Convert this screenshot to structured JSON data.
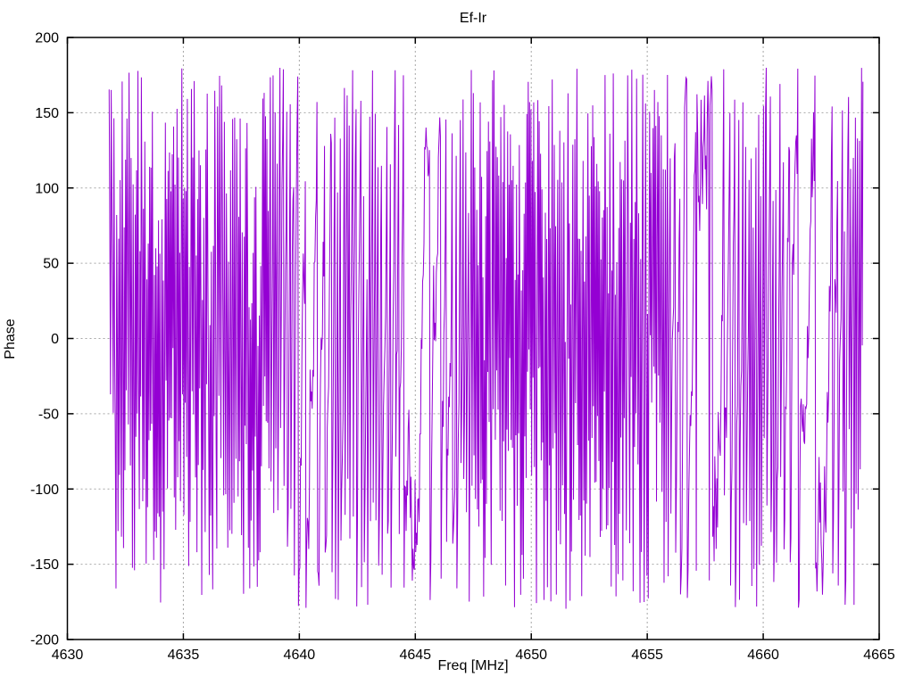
{
  "chart_data": {
    "type": "line",
    "title": "Ef-Ir",
    "xlabel": "Freq [MHz]",
    "ylabel": "Phase",
    "xlim": [
      4630,
      4665
    ],
    "ylim": [
      -200,
      200
    ],
    "x_ticks": [
      4630,
      4635,
      4640,
      4645,
      4650,
      4655,
      4660,
      4665
    ],
    "y_ticks": [
      -200,
      -150,
      -100,
      -50,
      0,
      50,
      100,
      150,
      200
    ],
    "grid": true,
    "legend": "none",
    "colors": {
      "trace": "#9400D3",
      "grid": "#a6a6a6",
      "border": "#000000",
      "background": "#ffffff",
      "text": "#000000"
    },
    "series": [
      {
        "name": "Ef-Ir",
        "color": "#9400D3",
        "style": "lines",
        "x_start": 4631.8,
        "x_end": 4664.3,
        "n_points": 1100,
        "y_min": -180,
        "y_max": 180,
        "representation": "wrapped-phase-noise",
        "seed": 77
      }
    ]
  }
}
